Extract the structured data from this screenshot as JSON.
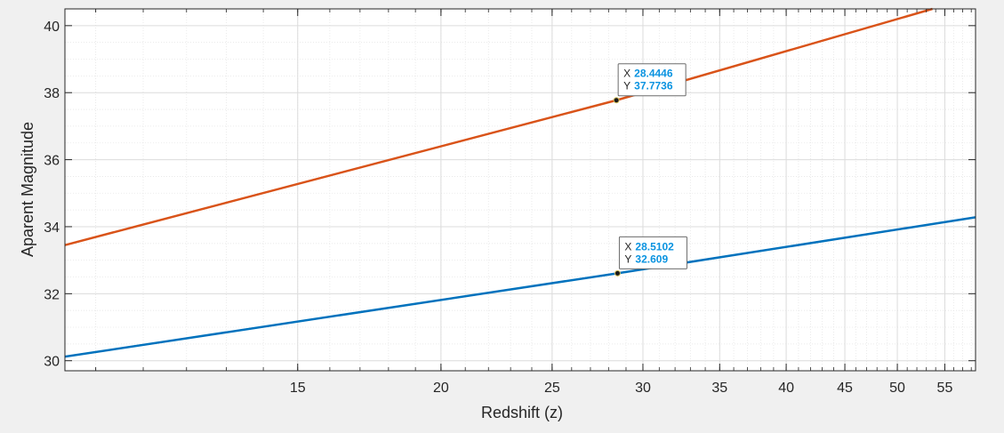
{
  "chart_data": {
    "type": "line",
    "xlabel": "Redshift (z)",
    "ylabel": "Aparent Magnitude",
    "xscale": "log",
    "xlim": [
      9.4,
      58.5
    ],
    "ylim": [
      29.7,
      40.5
    ],
    "xticks": [
      15,
      20,
      25,
      30,
      35,
      40,
      45,
      50,
      55
    ],
    "yticks": [
      30,
      32,
      34,
      36,
      38,
      40
    ],
    "grid": true,
    "minor_grid": true,
    "series": [
      {
        "color": "#D95319",
        "x": [
          9.4,
          28.4446,
          53.65
        ],
        "y": [
          33.45,
          37.7736,
          40.5
        ]
      },
      {
        "color": "#0072BD",
        "x": [
          9.4,
          28.5102,
          58.5
        ],
        "y": [
          30.12,
          32.609,
          34.28
        ]
      }
    ],
    "datatips": [
      {
        "x_key": "X",
        "x": "28.4446",
        "y_key": "Y",
        "y": "37.7736",
        "series": 0
      },
      {
        "x_key": "X",
        "x": "28.5102",
        "y_key": "Y",
        "y": "32.609",
        "series": 1
      }
    ]
  }
}
